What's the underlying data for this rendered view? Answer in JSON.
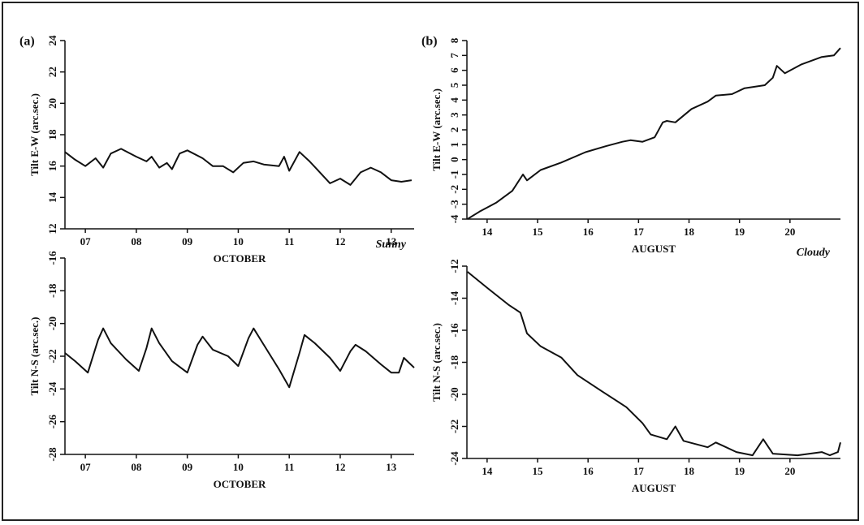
{
  "chart_data": [
    {
      "type": "line",
      "panel_label": "(a)",
      "y_label": "Tilt E-W (arc.sec.)",
      "x_label": "OCTOBER",
      "color": "#111111",
      "x": [
        7.1,
        7.3,
        7.5,
        7.7,
        7.85,
        8.0,
        8.2,
        8.5,
        8.7,
        8.8,
        8.95,
        9.1,
        9.2,
        9.35,
        9.5,
        9.8,
        10.0,
        10.2,
        10.4,
        10.6,
        10.8,
        11.0,
        11.3,
        11.4,
        11.5,
        11.7,
        11.9,
        12.1,
        12.3,
        12.5,
        12.7,
        12.9,
        13.1,
        13.3,
        13.5,
        13.7,
        13.9
      ],
      "values": [
        16.9,
        16.4,
        16.0,
        16.5,
        15.9,
        16.8,
        17.1,
        16.6,
        16.3,
        16.6,
        15.9,
        16.2,
        15.8,
        16.8,
        17.0,
        16.5,
        16.0,
        16.0,
        15.6,
        16.2,
        16.3,
        16.1,
        16.0,
        16.6,
        15.7,
        16.9,
        16.3,
        15.6,
        14.9,
        15.2,
        14.8,
        15.6,
        15.9,
        15.6,
        15.1,
        15.0,
        15.1
      ],
      "xlim": [
        7.1,
        13.95
      ],
      "xticks": [
        {
          "value": 7.5,
          "label": "07"
        },
        {
          "value": 8.5,
          "label": "08"
        },
        {
          "value": 9.5,
          "label": "09"
        },
        {
          "value": 10.5,
          "label": "10"
        },
        {
          "value": 11.5,
          "label": "11"
        },
        {
          "value": 12.5,
          "label": "12"
        },
        {
          "value": 13.5,
          "label": "13"
        }
      ],
      "ylim": [
        12,
        24
      ],
      "yticks": [
        12,
        14,
        16,
        18,
        20,
        22,
        24
      ]
    },
    {
      "type": "line",
      "panel_label": "(b)",
      "y_label": "Tilt E-W (arc.sec.)",
      "x_label": "AUGUST",
      "color": "#111111",
      "x": [
        14.11,
        14.35,
        14.68,
        15.0,
        15.21,
        15.29,
        15.56,
        15.97,
        16.45,
        16.85,
        17.18,
        17.34,
        17.58,
        17.82,
        17.98,
        18.06,
        18.23,
        18.55,
        18.87,
        19.03,
        19.35,
        19.6,
        20.0,
        20.16,
        20.24,
        20.4,
        20.73,
        21.13,
        21.37,
        21.5
      ],
      "values": [
        -4.0,
        -3.5,
        -2.9,
        -2.1,
        -1.0,
        -1.4,
        -0.7,
        -0.2,
        0.5,
        0.9,
        1.2,
        1.3,
        1.2,
        1.5,
        2.5,
        2.6,
        2.5,
        3.4,
        3.9,
        4.3,
        4.4,
        4.8,
        5.0,
        5.5,
        6.3,
        5.8,
        6.4,
        6.9,
        7.0,
        7.5
      ],
      "xlim": [
        14.1,
        21.5
      ],
      "xticks": [
        {
          "value": 14.5,
          "label": "14"
        },
        {
          "value": 15.5,
          "label": "15"
        },
        {
          "value": 16.5,
          "label": "16"
        },
        {
          "value": 17.5,
          "label": "17"
        },
        {
          "value": 18.5,
          "label": "18"
        },
        {
          "value": 19.5,
          "label": "19"
        },
        {
          "value": 20.5,
          "label": "20"
        }
      ],
      "ylim": [
        -4,
        8
      ],
      "yticks": [
        -4,
        -3,
        -2,
        -1,
        0,
        1,
        2,
        3,
        4,
        5,
        6,
        7,
        8
      ]
    },
    {
      "type": "line",
      "annotation": "Sunny",
      "y_label": "Tilt N-S (arc.sec.)",
      "x_label": "OCTOBER",
      "color": "#111111",
      "x": [
        7.1,
        7.3,
        7.55,
        7.75,
        7.85,
        8.0,
        8.3,
        8.55,
        8.7,
        8.8,
        8.95,
        9.2,
        9.5,
        9.7,
        9.8,
        10.0,
        10.3,
        10.5,
        10.7,
        10.8,
        11.0,
        11.3,
        11.5,
        11.7,
        11.8,
        12.0,
        12.3,
        12.5,
        12.7,
        12.8,
        13.0,
        13.3,
        13.5,
        13.65,
        13.75,
        13.85,
        13.95
      ],
      "values": [
        -21.8,
        -22.3,
        -23.0,
        -21.0,
        -20.3,
        -21.2,
        -22.2,
        -22.9,
        -21.5,
        -20.3,
        -21.2,
        -22.3,
        -23.0,
        -21.3,
        -20.8,
        -21.6,
        -22.0,
        -22.6,
        -20.9,
        -20.3,
        -21.3,
        -22.8,
        -23.9,
        -21.8,
        -20.7,
        -21.2,
        -22.1,
        -22.9,
        -21.7,
        -21.3,
        -21.7,
        -22.5,
        -23.0,
        -23.0,
        -22.1,
        -22.4,
        -22.7
      ],
      "xlim": [
        7.1,
        13.95
      ],
      "xticks": [
        {
          "value": 7.5,
          "label": "07"
        },
        {
          "value": 8.5,
          "label": "08"
        },
        {
          "value": 9.5,
          "label": "09"
        },
        {
          "value": 10.5,
          "label": "10"
        },
        {
          "value": 11.5,
          "label": "11"
        },
        {
          "value": 12.5,
          "label": "12"
        },
        {
          "value": 13.5,
          "label": "13"
        }
      ],
      "ylim": [
        -28,
        -16
      ],
      "yticks": [
        -28,
        -26,
        -24,
        -22,
        -20,
        -18,
        -16
      ]
    },
    {
      "type": "line",
      "annotation": "Cloudy",
      "y_label": "Tilt N-S (arc.sec.)",
      "x_label": "AUGUST",
      "color": "#111111",
      "x": [
        14.11,
        14.52,
        14.92,
        15.16,
        15.29,
        15.56,
        15.97,
        16.29,
        16.77,
        17.26,
        17.58,
        17.74,
        18.06,
        18.23,
        18.39,
        18.87,
        19.03,
        19.44,
        19.76,
        19.97,
        20.16,
        20.65,
        21.13,
        21.29,
        21.45,
        21.5
      ],
      "values": [
        -12.35,
        -13.4,
        -14.4,
        -14.9,
        -16.2,
        -17.0,
        -17.7,
        -18.8,
        -19.8,
        -20.8,
        -21.8,
        -22.5,
        -22.8,
        -22.0,
        -22.9,
        -23.3,
        -23.0,
        -23.6,
        -23.8,
        -22.8,
        -23.7,
        -23.8,
        -23.6,
        -23.8,
        -23.6,
        -23.0
      ],
      "xlim": [
        14.1,
        21.5
      ],
      "xticks": [
        {
          "value": 14.5,
          "label": "14"
        },
        {
          "value": 15.5,
          "label": "15"
        },
        {
          "value": 16.5,
          "label": "16"
        },
        {
          "value": 17.5,
          "label": "17"
        },
        {
          "value": 18.5,
          "label": "18"
        },
        {
          "value": 19.5,
          "label": "19"
        },
        {
          "value": 20.5,
          "label": "20"
        }
      ],
      "ylim": [
        -24,
        -12
      ],
      "yticks": [
        -24,
        -22,
        -20,
        -18,
        -16,
        -14,
        -12
      ]
    }
  ]
}
